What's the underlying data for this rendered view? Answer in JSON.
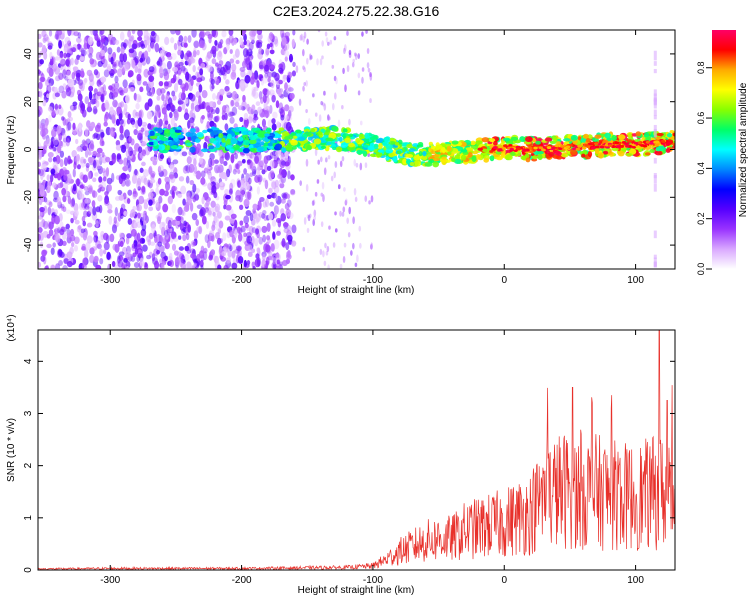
{
  "title": "C2E3.2024.275.22.38.G16",
  "chart_data": [
    {
      "type": "heatmap",
      "xlabel": "Height of straight line (km)",
      "ylabel": "Frequency (Hz)",
      "xlim": [
        -355,
        130
      ],
      "ylim": [
        -50,
        50
      ],
      "xticks": [
        -300,
        -200,
        -100,
        0,
        100
      ],
      "yticks": [
        -40,
        -20,
        0,
        20,
        40
      ],
      "grid": false,
      "colorbar": {
        "label": "Normalized spectral amplitude",
        "range": [
          0.0,
          0.95
        ],
        "ticks": [
          0.0,
          0.2,
          0.4,
          0.6,
          0.8
        ],
        "colors": [
          "#ffffff",
          "#d9a8ff",
          "#9933ff",
          "#5500ff",
          "#0000ff",
          "#0088ff",
          "#00ffff",
          "#00ff66",
          "#88ff00",
          "#ffff00",
          "#ffaa00",
          "#ff0000",
          "#ff0066"
        ]
      },
      "ridge": {
        "x": [
          -270,
          -250,
          -210,
          -180,
          -160,
          -130,
          -110,
          -90,
          -70,
          -50,
          -30,
          -10,
          0,
          20,
          40,
          60,
          80,
          100,
          120
        ],
        "y": [
          4,
          4,
          4,
          4,
          4,
          5,
          3,
          0,
          -2,
          -2,
          -1,
          0,
          1,
          0,
          1,
          1,
          2,
          2,
          3
        ]
      }
    },
    {
      "type": "line",
      "xlabel": "Height of straight line (km)",
      "ylabel": "SNR (10 * v/v)",
      "yscale_label": "(x10⁴)",
      "xlim": [
        -355,
        130
      ],
      "ylim": [
        0,
        4.6
      ],
      "xticks": [
        -300,
        -200,
        -100,
        0,
        100
      ],
      "yticks": [
        0,
        1,
        2,
        3,
        4
      ],
      "color": "#e8302a",
      "grid": false,
      "series": [
        {
          "x": [
            -355,
            -300,
            -250,
            -200,
            -160,
            -120,
            -100,
            -90,
            -80,
            -70,
            -60,
            -50,
            -40,
            -30,
            -20,
            -10,
            0,
            10,
            20,
            30,
            40,
            50,
            60,
            70,
            80,
            90,
            100,
            110,
            118,
            125,
            130
          ],
          "y": [
            0.02,
            0.03,
            0.03,
            0.03,
            0.04,
            0.05,
            0.08,
            0.2,
            0.35,
            0.45,
            0.55,
            0.6,
            0.6,
            0.75,
            0.8,
            0.85,
            0.9,
            1.0,
            1.1,
            1.4,
            1.5,
            1.55,
            1.5,
            1.5,
            1.45,
            1.4,
            1.4,
            1.45,
            1.5,
            1.45,
            1.4
          ]
        }
      ]
    }
  ]
}
